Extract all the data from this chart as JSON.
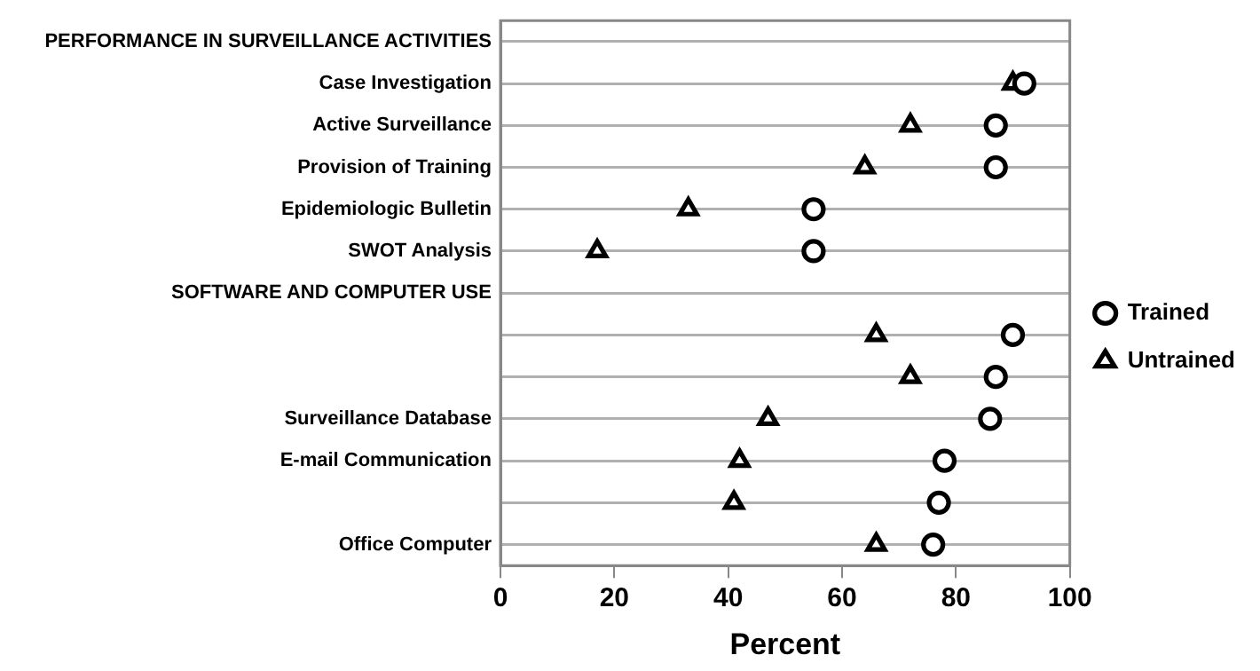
{
  "chart_data": {
    "type": "scatter",
    "orientation": "horizontal",
    "xlabel": "Percent",
    "categories": [
      "PERFORMANCE IN SURVEILLANCE ACTIVITIES",
      "Case Investigation",
      "Active Surveillance",
      "Provision of Training",
      "Epidemiologic Bulletin",
      "SWOT Analysis",
      "SOFTWARE AND COMPUTER USE",
      null,
      null,
      "Surveillance Database",
      "E-mail Communication",
      null,
      "Office Computer"
    ],
    "series": [
      {
        "name": "Trained",
        "color": "#000000",
        "marker": "circle",
        "values": [
          null,
          92,
          87,
          87,
          55,
          55,
          null,
          90,
          87,
          86,
          78,
          77,
          76
        ]
      },
      {
        "name": "Untrained",
        "color": "#000000",
        "marker": "triangle",
        "values": [
          null,
          90,
          72,
          64,
          33,
          17,
          null,
          66,
          72,
          47,
          42,
          41,
          66
        ]
      }
    ],
    "xlim": [
      0,
      100
    ],
    "xticks": [
      0,
      20,
      40,
      60,
      80,
      100
    ],
    "grid": "y",
    "legend": "right"
  }
}
